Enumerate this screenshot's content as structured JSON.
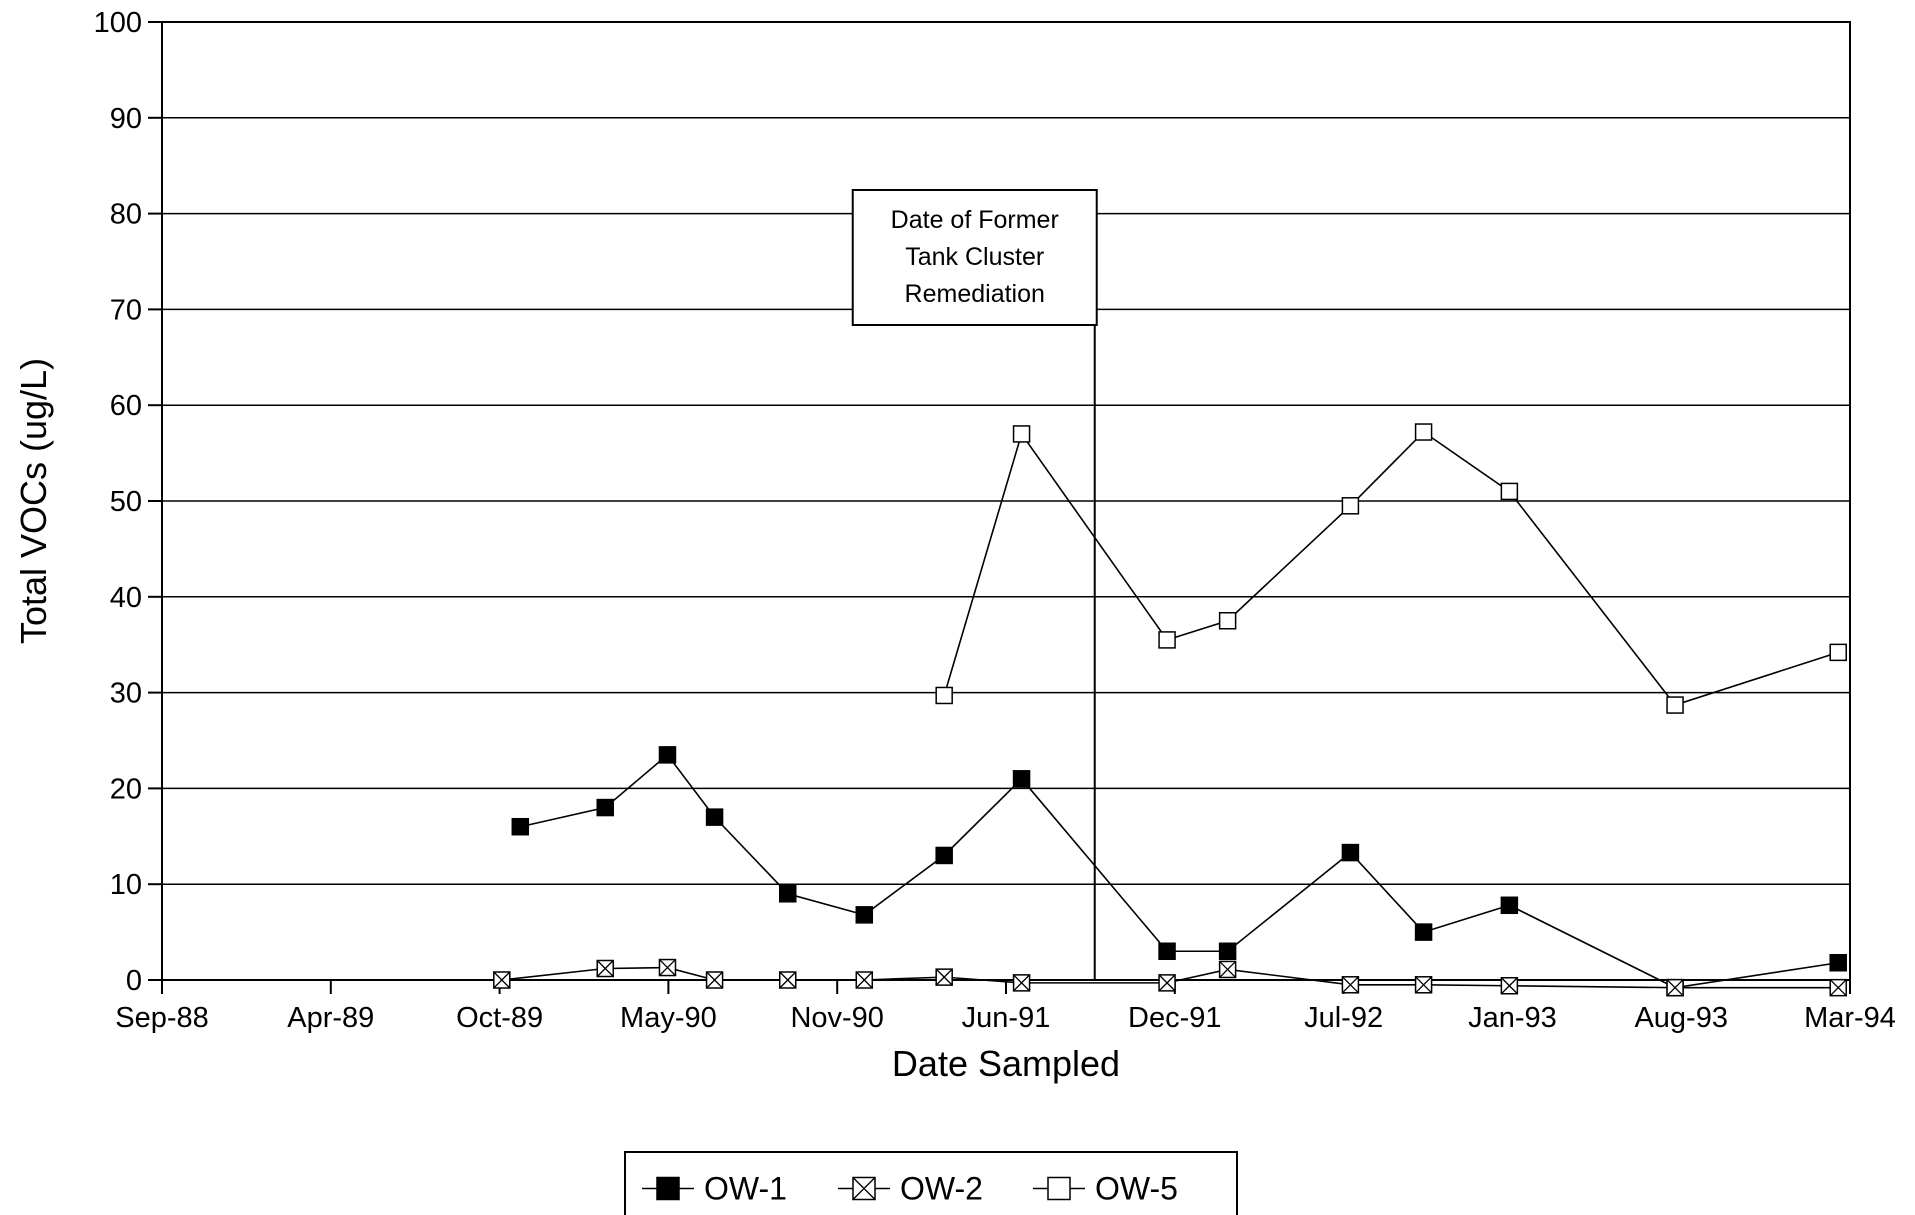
{
  "chart_data": {
    "type": "line",
    "title": "",
    "xlabel": "Date Sampled",
    "ylabel": "Total VOCs (ug/L)",
    "x_ticks": [
      "Sep-88",
      "Apr-89",
      "Oct-89",
      "May-90",
      "Nov-90",
      "Jun-91",
      "Dec-91",
      "Jul-92",
      "Jan-93",
      "Aug-93",
      "Mar-94"
    ],
    "xlim": [
      "1988-09-01",
      "1994-03-01"
    ],
    "ylim": [
      0,
      100
    ],
    "y_ticks": [
      0,
      10,
      20,
      30,
      40,
      50,
      60,
      70,
      80,
      90,
      100
    ],
    "grid": true,
    "legend_position": "bottom-center",
    "annotation": {
      "lines": [
        "Date of Former",
        "Tank Cluster",
        "Remediation"
      ],
      "date": "1991-09-15"
    },
    "series": [
      {
        "name": "OW-1",
        "marker": "filled-square",
        "points": [
          {
            "x": "1989-11-01",
            "y": 16
          },
          {
            "x": "1990-02-10",
            "y": 18
          },
          {
            "x": "1990-04-25",
            "y": 23.5
          },
          {
            "x": "1990-06-20",
            "y": 17
          },
          {
            "x": "1990-09-15",
            "y": 9
          },
          {
            "x": "1990-12-15",
            "y": 6.8
          },
          {
            "x": "1991-03-20",
            "y": 13
          },
          {
            "x": "1991-06-20",
            "y": 21
          },
          {
            "x": "1991-12-10",
            "y": 3
          },
          {
            "x": "1992-02-20",
            "y": 3
          },
          {
            "x": "1992-07-15",
            "y": 13.3
          },
          {
            "x": "1992-10-10",
            "y": 5
          },
          {
            "x": "1993-01-20",
            "y": 7.8
          },
          {
            "x": "1993-08-05",
            "y": -0.8
          },
          {
            "x": "1994-02-15",
            "y": 1.8
          }
        ]
      },
      {
        "name": "OW-2",
        "marker": "crossed-square",
        "points": [
          {
            "x": "1989-10-10",
            "y": 0
          },
          {
            "x": "1990-02-10",
            "y": 1.2
          },
          {
            "x": "1990-04-25",
            "y": 1.3
          },
          {
            "x": "1990-06-20",
            "y": 0
          },
          {
            "x": "1990-09-15",
            "y": 0
          },
          {
            "x": "1990-12-15",
            "y": 0
          },
          {
            "x": "1991-03-20",
            "y": 0.3
          },
          {
            "x": "1991-06-20",
            "y": -0.3
          },
          {
            "x": "1991-12-10",
            "y": -0.3
          },
          {
            "x": "1992-02-20",
            "y": 1.1
          },
          {
            "x": "1992-07-15",
            "y": -0.5
          },
          {
            "x": "1992-10-10",
            "y": -0.5
          },
          {
            "x": "1993-01-20",
            "y": -0.6
          },
          {
            "x": "1993-08-05",
            "y": -0.8
          },
          {
            "x": "1994-02-15",
            "y": -0.8
          }
        ]
      },
      {
        "name": "OW-5",
        "marker": "open-square",
        "points": [
          {
            "x": "1991-03-20",
            "y": 29.7
          },
          {
            "x": "1991-06-20",
            "y": 57
          },
          {
            "x": "1991-12-10",
            "y": 35.5
          },
          {
            "x": "1992-02-20",
            "y": 37.5
          },
          {
            "x": "1992-07-15",
            "y": 49.5
          },
          {
            "x": "1992-10-10",
            "y": 57.2
          },
          {
            "x": "1993-01-20",
            "y": 51
          },
          {
            "x": "1993-08-05",
            "y": 28.7
          },
          {
            "x": "1994-02-15",
            "y": 34.2
          }
        ]
      }
    ]
  }
}
